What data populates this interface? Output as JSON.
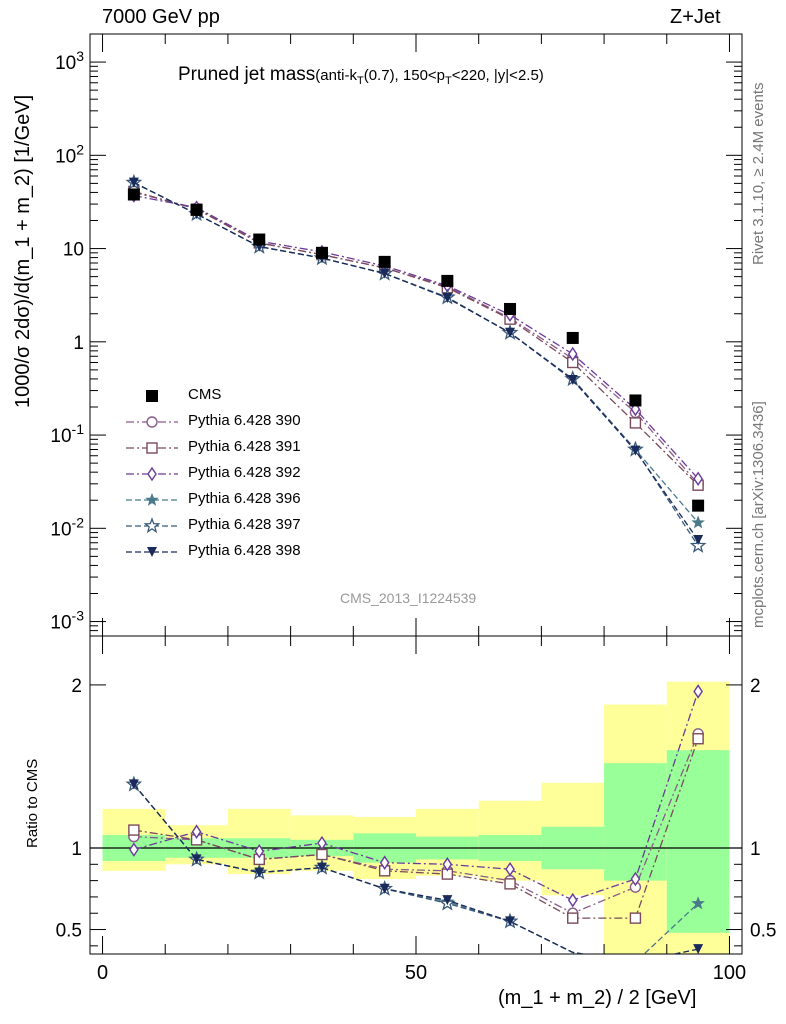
{
  "header": {
    "energy_label": "7000 GeV pp",
    "process_label": "Z+Jet",
    "rivet_label": "Rivet 3.1.10, ≥ 2.4M events",
    "mcplots_label": "mcplots.cern.ch [arXiv:1306.3436]",
    "analysis_tag": "CMS_2013_I1224539"
  },
  "chart_data": [
    {
      "type": "scatter",
      "title": "Pruned jet mass",
      "subtitle": "(anti-k_T(0.7), 150<p_T<220, |y|<2.5)",
      "xlabel": "(m_1 + m_2) / 2 [GeV]",
      "ylabel": "1000/σ 2dσ)/d(m_1 + m_2) [1/GeV]",
      "yscale": "log",
      "xlim": [
        -2,
        102
      ],
      "ylim": [
        0.0007,
        2000
      ],
      "y_tick_labels": [
        "10^-3",
        "10^-2",
        "10^-1",
        "1",
        "10",
        "10^2",
        "10^3"
      ],
      "legend_placement": "left",
      "x": [
        5,
        15,
        25,
        35,
        45,
        55,
        65,
        75,
        85,
        95
      ],
      "data": {
        "name": "CMS",
        "color": "#000000",
        "values": [
          38,
          26,
          12.5,
          9,
          7.2,
          4.5,
          2.25,
          1.1,
          0.235,
          0.0175
        ]
      },
      "series": [
        {
          "name": "Pythia 6.428 390",
          "color": "#8a5a8a",
          "marker": "circle-open",
          "line": "dash-dot",
          "values": [
            40,
            27,
            11.5,
            8.6,
            6.2,
            3.9,
            1.8,
            0.66,
            0.175,
            0.03
          ]
        },
        {
          "name": "Pythia 6.428 391",
          "color": "#7a4a5a",
          "marker": "square-open",
          "line": "dash-dot",
          "values": [
            41,
            26.5,
            11.5,
            8.6,
            6.2,
            3.8,
            1.75,
            0.6,
            0.135,
            0.029
          ]
        },
        {
          "name": "Pythia 6.428 392",
          "color": "#6a3a9a",
          "marker": "diamond-open",
          "line": "dash-dot",
          "values": [
            37,
            27.5,
            12,
            9.2,
            6.5,
            4.0,
            1.95,
            0.74,
            0.19,
            0.034
          ]
        },
        {
          "name": "Pythia 6.428 396",
          "color": "#4a7a8a",
          "marker": "star-filled",
          "line": "dashed",
          "values": [
            51,
            23.5,
            10.5,
            7.9,
            5.4,
            3.0,
            1.25,
            0.4,
            0.07,
            0.0115
          ]
        },
        {
          "name": "Pythia 6.428 397",
          "color": "#3a5a7a",
          "marker": "star-open",
          "line": "dashed",
          "values": [
            51,
            23.5,
            10.5,
            7.9,
            5.4,
            3.0,
            1.25,
            0.4,
            0.07,
            0.0065
          ]
        },
        {
          "name": "Pythia 6.428 398",
          "color": "#1a2a5a",
          "marker": "triangle-down-filled",
          "line": "dashed",
          "values": [
            51,
            23.5,
            10.5,
            7.9,
            5.4,
            2.95,
            1.25,
            0.39,
            0.068,
            0.0075
          ]
        }
      ]
    },
    {
      "type": "scatter",
      "ylabel": "Ratio to CMS",
      "xlabel": "(m_1 + m_2) / 2 [GeV]",
      "xlim": [
        -2,
        102
      ],
      "ylim": [
        0.35,
        2.3
      ],
      "y_ticks": [
        0.5,
        1,
        2
      ],
      "x_ticks": [
        0,
        50,
        100
      ],
      "bands": {
        "edges": [
          0,
          10,
          20,
          30,
          40,
          50,
          60,
          70,
          80,
          90,
          100
        ],
        "green_lo": [
          0.92,
          0.94,
          0.94,
          0.95,
          0.91,
          0.93,
          0.92,
          0.87,
          0.8,
          0.48
        ],
        "green_hi": [
          1.08,
          1.06,
          1.06,
          1.05,
          1.09,
          1.07,
          1.08,
          1.13,
          1.52,
          1.6
        ],
        "yellow_lo": [
          0.86,
          0.9,
          0.84,
          0.86,
          0.81,
          0.83,
          0.8,
          0.71,
          0.35,
          0.35
        ],
        "yellow_hi": [
          1.24,
          1.14,
          1.24,
          1.2,
          1.19,
          1.24,
          1.29,
          1.4,
          1.88,
          2.02
        ],
        "green_color": "#99ff99",
        "yellow_color": "#ffff99"
      },
      "ratios": [
        {
          "name": "Pythia 6.428 390",
          "values": [
            1.07,
            1.05,
            0.93,
            0.96,
            0.87,
            0.86,
            0.8,
            0.6,
            0.76,
            1.7
          ]
        },
        {
          "name": "Pythia 6.428 391",
          "values": [
            1.11,
            1.05,
            0.93,
            0.96,
            0.86,
            0.84,
            0.78,
            0.57,
            0.57,
            1.67
          ]
        },
        {
          "name": "Pythia 6.428 392",
          "values": [
            0.99,
            1.1,
            0.98,
            1.03,
            0.91,
            0.9,
            0.87,
            0.68,
            0.81,
            1.96
          ]
        },
        {
          "name": "Pythia 6.428 396",
          "values": [
            1.39,
            0.93,
            0.85,
            0.88,
            0.75,
            0.67,
            0.55,
            0.36,
            0.3,
            0.66
          ]
        },
        {
          "name": "Pythia 6.428 397",
          "values": [
            1.39,
            0.93,
            0.85,
            0.88,
            0.75,
            0.66,
            0.55,
            0.36,
            0.3,
            0.3
          ]
        },
        {
          "name": "Pythia 6.428 398",
          "values": [
            1.39,
            0.93,
            0.85,
            0.88,
            0.75,
            0.68,
            0.55,
            0.36,
            0.3,
            0.38
          ]
        }
      ]
    }
  ]
}
